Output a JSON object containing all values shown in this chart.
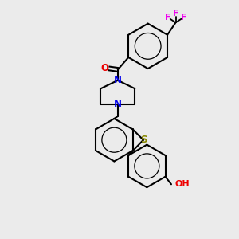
{
  "background_color": "#ebebeb",
  "atom_colors": {
    "C": "#000000",
    "N": "#0000EE",
    "O": "#EE0000",
    "S": "#888800",
    "F": "#EE00EE"
  },
  "bond_color": "#000000",
  "figsize": [
    3.0,
    3.0
  ],
  "dpi": 100,
  "xlim": [
    0,
    10
  ],
  "ylim": [
    0,
    10
  ]
}
